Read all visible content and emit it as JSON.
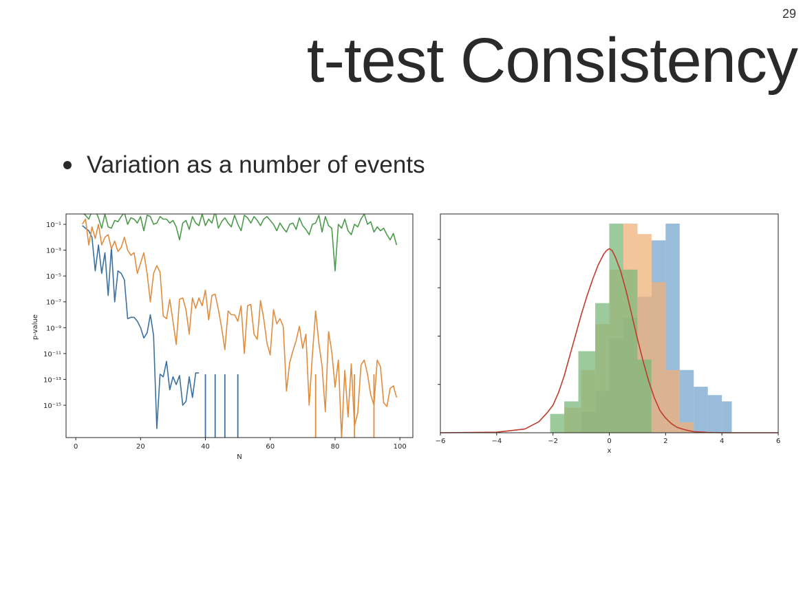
{
  "page_number": "29",
  "title": "t-test Consistency",
  "bullet": "Variation as a number of events",
  "chart_data": [
    {
      "type": "line",
      "title": "",
      "xlabel": "N",
      "ylabel": "p-value",
      "yscale": "log",
      "xlim": [
        -3,
        104
      ],
      "ylim_exponent": [
        -17.5,
        -0.2
      ],
      "xticks": [
        0,
        20,
        40,
        60,
        80,
        100
      ],
      "yticks_exponent": [
        -1,
        -3,
        -5,
        -7,
        -9,
        -11,
        -13,
        -15
      ],
      "grid": false,
      "series": [
        {
          "color": "#3a6fa0",
          "x": [
            2,
            3,
            4,
            5,
            6,
            7,
            8,
            9,
            10,
            11,
            12,
            13,
            14,
            15,
            16,
            17,
            18,
            19,
            20,
            21,
            22,
            23,
            24,
            25,
            26,
            27,
            28,
            29,
            30,
            31,
            32,
            33,
            34,
            35,
            36,
            37,
            38
          ],
          "log10_y": [
            -1.1,
            -1.3,
            -1.5,
            -2.0,
            -4.6,
            -2.6,
            -4.8,
            -3.2,
            -6.5,
            -2.8,
            -7.0,
            -4.6,
            -4.8,
            -5.3,
            -8.3,
            -8.2,
            -8.2,
            -8.5,
            -9.0,
            -9.8,
            -9.4,
            -8.0,
            -9.6,
            -16.8,
            -12.6,
            -12.8,
            -11.6,
            -13.8,
            -12.8,
            -13.4,
            -12.7,
            -15.0,
            -14.7,
            -12.8,
            -14.4,
            -12.5,
            -12.5
          ]
        },
        {
          "color": "#e08c3c",
          "x": [
            2,
            3,
            4,
            5,
            6,
            7,
            8,
            9,
            10,
            11,
            12,
            13,
            14,
            15,
            16,
            17,
            18,
            19,
            20,
            21,
            22,
            23,
            24,
            25,
            26,
            27,
            28,
            29,
            30,
            31,
            32,
            33,
            34,
            35,
            36,
            37,
            38,
            39,
            40,
            41,
            42,
            43,
            44,
            45,
            46,
            47,
            48,
            49,
            50,
            51,
            52,
            53,
            54,
            55,
            56,
            57,
            58,
            59,
            60,
            61,
            62,
            63,
            64,
            65,
            66,
            67,
            68,
            69,
            70,
            71,
            72,
            73,
            74,
            75,
            76,
            77,
            78,
            79,
            80,
            81,
            82,
            83,
            84,
            85,
            86,
            87,
            88,
            89,
            90,
            91,
            92,
            93,
            94,
            95,
            96,
            97,
            98,
            99
          ],
          "log10_y": [
            -1.0,
            -0.6,
            -2.6,
            -1.2,
            -2.1,
            -1.0,
            -2.6,
            -2.0,
            -1.8,
            -2.9,
            -2.3,
            -3.1,
            -2.8,
            -2.0,
            -3.0,
            -3.4,
            -3.2,
            -4.8,
            -4.0,
            -3.2,
            -4.8,
            -7.0,
            -4.8,
            -4.2,
            -4.7,
            -8.1,
            -8.3,
            -6.8,
            -8.5,
            -10.3,
            -6.8,
            -6.7,
            -7.6,
            -9.5,
            -6.7,
            -7.5,
            -6.7,
            -7.3,
            -6.1,
            -8.4,
            -6.5,
            -6.4,
            -7.6,
            -9.0,
            -10.7,
            -7.7,
            -8.0,
            -8.0,
            -8.5,
            -7.3,
            -11.0,
            -7.3,
            -7.2,
            -9.5,
            -9.9,
            -6.9,
            -8.3,
            -10.2,
            -11.1,
            -7.6,
            -8.7,
            -8.3,
            -8.9,
            -13.9,
            -11.7,
            -10.8,
            -10.0,
            -8.9,
            -10.6,
            -9.5,
            -15.0,
            -11.1,
            -7.7,
            -10.2,
            -12.0,
            -15.5,
            -9.3,
            -10.9,
            -13.6,
            -11.5,
            -17.5,
            -12.3,
            -15.9,
            -11.8,
            -16.6,
            -15.6,
            -11.9,
            -11.5,
            -12.6,
            -14.2,
            -15.0,
            -11.5,
            -12.0,
            -14.8,
            -15.1,
            -13.7,
            -13.5,
            -14.4
          ]
        },
        {
          "color": "#4a9a4a",
          "x": [
            2,
            3,
            4,
            5,
            6,
            7,
            8,
            9,
            10,
            11,
            12,
            13,
            14,
            15,
            16,
            17,
            18,
            19,
            20,
            21,
            22,
            23,
            24,
            25,
            26,
            27,
            28,
            29,
            30,
            31,
            32,
            33,
            34,
            35,
            36,
            37,
            38,
            39,
            40,
            41,
            42,
            43,
            44,
            45,
            46,
            47,
            48,
            49,
            50,
            51,
            52,
            53,
            54,
            55,
            56,
            57,
            58,
            59,
            60,
            61,
            62,
            63,
            64,
            65,
            66,
            67,
            68,
            69,
            70,
            71,
            72,
            73,
            74,
            75,
            76,
            77,
            78,
            79,
            80,
            81,
            82,
            83,
            84,
            85,
            86,
            87,
            88,
            89,
            90,
            91,
            92,
            93,
            94,
            95,
            96,
            97,
            98,
            99
          ],
          "log10_y": [
            -0.1,
            -0.3,
            -0.6,
            0.0,
            0.1,
            -0.5,
            -1.3,
            -0.2,
            -1.2,
            -1.3,
            -0.7,
            -0.8,
            -0.4,
            -0.1,
            -1.0,
            -0.5,
            -0.6,
            -0.9,
            -0.4,
            -1.5,
            -0.3,
            -0.4,
            -1.0,
            -0.9,
            -0.4,
            -0.6,
            -0.6,
            -0.9,
            -0.7,
            -1.2,
            -2.2,
            -0.9,
            -0.7,
            -1.4,
            -0.4,
            -0.9,
            -1.1,
            -0.2,
            -1.1,
            -0.6,
            -0.9,
            0.0,
            -1.3,
            -0.8,
            -0.5,
            -0.9,
            -1.2,
            -0.3,
            -1.0,
            -1.5,
            -0.3,
            -0.5,
            -0.9,
            -0.4,
            -0.7,
            -1.1,
            -0.6,
            -0.4,
            -0.7,
            -1.0,
            -1.5,
            -0.9,
            -1.3,
            -1.6,
            -1.0,
            -0.9,
            -1.4,
            -0.5,
            -1.1,
            -1.4,
            -1.8,
            -1.0,
            -0.9,
            -0.3,
            -1.6,
            -0.4,
            -1.1,
            -1.3,
            -4.6,
            -1.0,
            -1.3,
            -0.6,
            -1.5,
            -1.8,
            -1.0,
            -1.2,
            -0.6,
            -0.2,
            -1.0,
            -0.8,
            -1.6,
            -1.2,
            -1.5,
            -1.3,
            -1.8,
            -2.2,
            -1.7,
            -2.6
          ]
        }
      ],
      "drops_below_axis": [
        {
          "series": 0,
          "x": [
            40,
            43,
            46,
            50
          ]
        },
        {
          "series": 1,
          "x": [
            74,
            86,
            92
          ]
        }
      ]
    },
    {
      "type": "histogram",
      "title": "",
      "xlabel": "x",
      "xlim": [
        -6,
        6
      ],
      "xticks": [
        -6,
        -4,
        -2,
        0,
        2,
        4,
        6
      ],
      "ylim": [
        0,
        1.15
      ],
      "grid": false,
      "series": [
        {
          "color": "#76a6cc",
          "edges": [
            -1.0,
            -0.5,
            0.0,
            0.5,
            1.0,
            1.5,
            2.0,
            2.5,
            3.0,
            3.5,
            4.0,
            4.35
          ],
          "heights": [
            0.1,
            0.2,
            0.45,
            0.55,
            0.65,
            0.92,
            1.0,
            0.3,
            0.22,
            0.18,
            0.15
          ]
        },
        {
          "color": "#f0b07a",
          "edges": [
            -1.6,
            -1.0,
            -0.5,
            0.0,
            0.5,
            1.0,
            1.5,
            2.0,
            2.5,
            3.0
          ],
          "heights": [
            0.12,
            0.3,
            0.52,
            0.78,
            1.0,
            0.95,
            0.72,
            0.3,
            0.05
          ]
        },
        {
          "color": "#7cb87c",
          "edges": [
            -2.1,
            -1.6,
            -1.1,
            -0.5,
            0.0,
            0.5,
            1.0,
            1.5
          ],
          "heights": [
            0.09,
            0.15,
            0.39,
            0.62,
            1.0,
            0.78,
            0.35
          ]
        }
      ],
      "curve": {
        "color": "#c0392b",
        "x": [
          -6.0,
          -4.0,
          -3.0,
          -2.5,
          -2.2,
          -2.0,
          -1.8,
          -1.6,
          -1.4,
          -1.2,
          -1.0,
          -0.8,
          -0.6,
          -0.4,
          -0.2,
          -0.1,
          0.0,
          0.1,
          0.2,
          0.4,
          0.6,
          0.8,
          1.0,
          1.2,
          1.4,
          1.6,
          1.8,
          2.0,
          2.2,
          2.4,
          2.6,
          2.8,
          3.0,
          3.5,
          4.0,
          6.0
        ],
        "y": [
          0.0,
          0.003,
          0.02,
          0.06,
          0.11,
          0.15,
          0.22,
          0.31,
          0.42,
          0.53,
          0.64,
          0.74,
          0.83,
          0.91,
          0.97,
          0.99,
          1.0,
          0.99,
          0.96,
          0.88,
          0.77,
          0.64,
          0.51,
          0.39,
          0.28,
          0.19,
          0.12,
          0.08,
          0.05,
          0.03,
          0.02,
          0.012,
          0.006,
          0.002,
          0.0,
          0.0
        ]
      }
    }
  ]
}
